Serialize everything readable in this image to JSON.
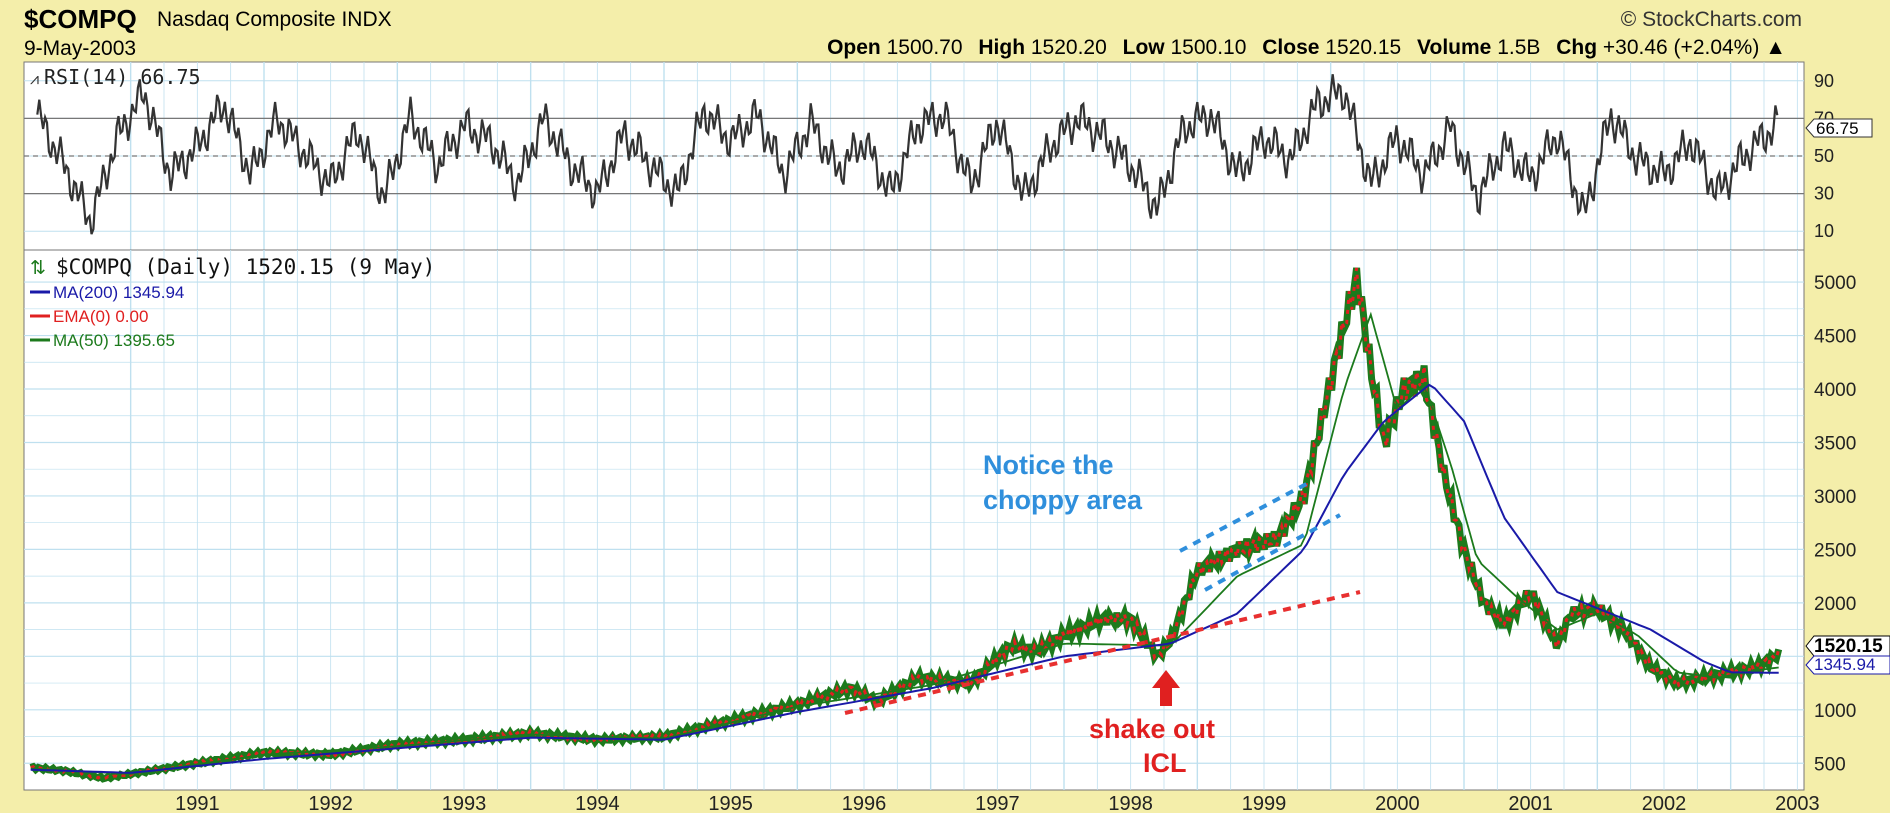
{
  "header": {
    "symbol": "$COMPQ",
    "name": "Nasdaq Composite",
    "exchange": "INDX",
    "date": "9-May-2003",
    "brand": "StockCharts.com",
    "open_label": "Open",
    "open": "1500.70",
    "high_label": "High",
    "high": "1520.20",
    "low_label": "Low",
    "low": "1500.10",
    "close_label": "Close",
    "close": "1520.15",
    "volume_label": "Volume",
    "volume": "1.5B",
    "chg_label": "Chg",
    "chg": "+30.46 (+2.04%)"
  },
  "rsi_panel": {
    "label": "RSI(14) 66.75",
    "current_tag": "66.75"
  },
  "price_panel": {
    "title": "$COMPQ (Daily) 1520.15 (9 May)",
    "legend": [
      {
        "text": "MA(200) 1345.94",
        "color": "#1a1aa8"
      },
      {
        "text": "EMA(0) 0.00",
        "color": "#e02020"
      },
      {
        "text": "MA(50) 1395.65",
        "color": "#1c7a1c"
      }
    ],
    "price_tag": "1520.15",
    "ma200_tag": "1345.94"
  },
  "annotations": {
    "choppy_line1": "Notice the",
    "choppy_line2": "choppy area",
    "shake_line1": "shake out",
    "shake_line2": "ICL"
  },
  "colors": {
    "background": "#f4eeaa",
    "plot_bg": "#ffffff",
    "grid": "#bfe0ef",
    "up_bar": "#1c7a1c",
    "down_bar": "#e02020",
    "ma200": "#1a1aa8",
    "ma50": "#1c7a1c",
    "annotation_blue": "#2f8fdc",
    "annotation_red": "#e02020"
  },
  "chart_data": [
    {
      "type": "line",
      "name": "RSI(14)",
      "ylim": [
        0,
        100
      ],
      "yticks": [
        90,
        70,
        50,
        30,
        10
      ],
      "reference_lines": [
        70,
        50,
        30
      ],
      "x": [
        1990.3,
        1990.5,
        1990.7,
        1990.9,
        1991.1,
        1991.3,
        1991.5,
        1991.7,
        1991.9,
        1992.1,
        1992.3,
        1992.5,
        1992.7,
        1992.9,
        1993.1,
        1993.3,
        1993.5,
        1993.7,
        1993.9,
        1994.1,
        1994.3,
        1994.5,
        1994.7,
        1994.9,
        1995.1,
        1995.3,
        1995.5,
        1995.7,
        1995.9,
        1996.1,
        1996.3,
        1996.5,
        1996.7,
        1996.9,
        1997.1,
        1997.3,
        1997.5,
        1997.7,
        1997.9,
        1998.1,
        1998.3,
        1998.5,
        1998.7,
        1998.9,
        1999.1,
        1999.3,
        1999.5,
        1999.7,
        1999.9,
        2000.1,
        2000.3,
        2000.5,
        2000.7,
        2000.9,
        2001.1,
        2001.3,
        2001.5,
        2001.7,
        2001.9,
        2002.1,
        2002.3,
        2002.5,
        2002.7,
        2002.9,
        2003.1,
        2003.35
      ],
      "values": [
        72,
        45,
        15,
        60,
        84,
        40,
        55,
        78,
        40,
        70,
        52,
        35,
        64,
        28,
        71,
        45,
        66,
        58,
        35,
        70,
        45,
        30,
        62,
        45,
        30,
        74,
        58,
        72,
        40,
        68,
        42,
        58,
        30,
        66,
        72,
        34,
        69,
        28,
        55,
        70,
        60,
        45,
        22,
        65,
        72,
        40,
        60,
        48,
        78,
        85,
        35,
        60,
        40,
        65,
        28,
        55,
        38,
        62,
        18,
        72,
        48,
        40,
        58,
        30,
        50,
        67
      ]
    },
    {
      "type": "line",
      "title": "$COMPQ (Daily) 1520.15 (9 May)",
      "ylim": [
        250,
        5300
      ],
      "yticks": [
        5000,
        4500,
        4000,
        3500,
        3000,
        2500,
        2000,
        1500,
        1000,
        500
      ],
      "xticks": [
        "1991",
        "1992",
        "1993",
        "1994",
        "1995",
        "1996",
        "1997",
        "1998",
        "1999",
        "2000",
        "2001",
        "2002",
        "2003"
      ],
      "series": [
        {
          "name": "$COMPQ",
          "x": [
            1990.25,
            1990.5,
            1990.8,
            1991.0,
            1991.5,
            1992.0,
            1992.5,
            1993.0,
            1993.5,
            1994.0,
            1994.5,
            1995.0,
            1995.5,
            1996.0,
            1996.4,
            1996.6,
            1996.9,
            1997.3,
            1997.6,
            1997.8,
            1998.0,
            1998.3,
            1998.5,
            1998.7,
            1998.8,
            1999.0,
            1999.3,
            1999.6,
            1999.8,
            1999.95,
            2000.1,
            2000.2,
            2000.3,
            2000.4,
            2000.55,
            2000.7,
            2000.85,
            2001.0,
            2001.15,
            2001.3,
            2001.5,
            2001.7,
            2001.8,
            2002.0,
            2002.2,
            2002.4,
            2002.6,
            2002.8,
            2003.0,
            2003.2,
            2003.36
          ],
          "values": [
            460,
            430,
            360,
            400,
            500,
            600,
            580,
            680,
            720,
            780,
            720,
            750,
            900,
            1050,
            1200,
            1080,
            1300,
            1250,
            1600,
            1550,
            1700,
            1850,
            1850,
            1500,
            1650,
            2300,
            2500,
            2600,
            3000,
            3800,
            4600,
            5050,
            4200,
            3500,
            4000,
            4100,
            3200,
            2500,
            2000,
            1800,
            2100,
            1600,
            1900,
            1950,
            1750,
            1400,
            1250,
            1300,
            1350,
            1400,
            1520
          ]
        },
        {
          "name": "MA(200)",
          "x": [
            1990.25,
            1991.0,
            1992.0,
            1993.0,
            1994.0,
            1995.0,
            1996.0,
            1997.0,
            1998.0,
            1998.8,
            1999.3,
            1999.8,
            2000.1,
            2000.4,
            2000.75,
            2001.0,
            2001.3,
            2001.7,
            2002.0,
            2002.4,
            2002.8,
            2003.0,
            2003.36
          ],
          "values": [
            440,
            410,
            540,
            640,
            740,
            720,
            980,
            1200,
            1500,
            1620,
            1900,
            2500,
            3200,
            3700,
            4050,
            3700,
            2800,
            2100,
            1950,
            1750,
            1450,
            1350,
            1346
          ]
        },
        {
          "name": "MA(50)",
          "x": [
            1990.25,
            1991.0,
            1992.0,
            1993.0,
            1994.0,
            1995.0,
            1996.0,
            1997.0,
            1998.0,
            1998.8,
            1999.3,
            1999.8,
            2000.1,
            2000.3,
            2000.5,
            2000.7,
            2000.9,
            2001.1,
            2001.4,
            2001.7,
            2002.0,
            2002.3,
            2002.6,
            2002.9,
            2003.2,
            2003.36
          ],
          "values": [
            450,
            400,
            580,
            660,
            770,
            730,
            1030,
            1230,
            1620,
            1600,
            2250,
            2550,
            4000,
            4700,
            3800,
            4050,
            3300,
            2400,
            2050,
            1750,
            1900,
            1700,
            1350,
            1300,
            1370,
            1396
          ]
        }
      ]
    }
  ]
}
